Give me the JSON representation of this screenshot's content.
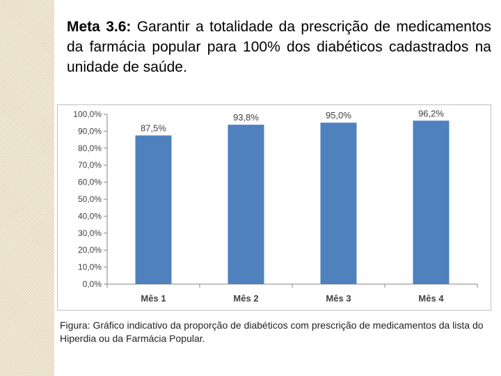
{
  "heading": {
    "bold": "Meta 3.6:",
    "text": " Garantir a totalidade da prescrição de medicamentos da farmácia popular para 100% dos diabéticos cadastrados na unidade de saúde."
  },
  "caption": "Figura: Gráfico indicativo da proporção de diabéticos com prescrição de medicamentos da lista do Hiperdia ou da Farmácia Popular.",
  "chart_data": {
    "type": "bar",
    "title": "",
    "xlabel": "",
    "ylabel": "",
    "categories": [
      "Mês 1",
      "Mês 2",
      "Mês 3",
      "Mês 4"
    ],
    "values": [
      87.5,
      93.8,
      95.0,
      96.2
    ],
    "value_labels": [
      "87,5%",
      "93,8%",
      "95,0%",
      "96,2%"
    ],
    "yticks": [
      "0,0%",
      "10,0%",
      "20,0%",
      "30,0%",
      "40,0%",
      "50,0%",
      "60,0%",
      "70,0%",
      "80,0%",
      "90,0%",
      "100,0%"
    ],
    "ylim": [
      0,
      100
    ],
    "grid": false,
    "bar_color": "#4f81bd"
  }
}
